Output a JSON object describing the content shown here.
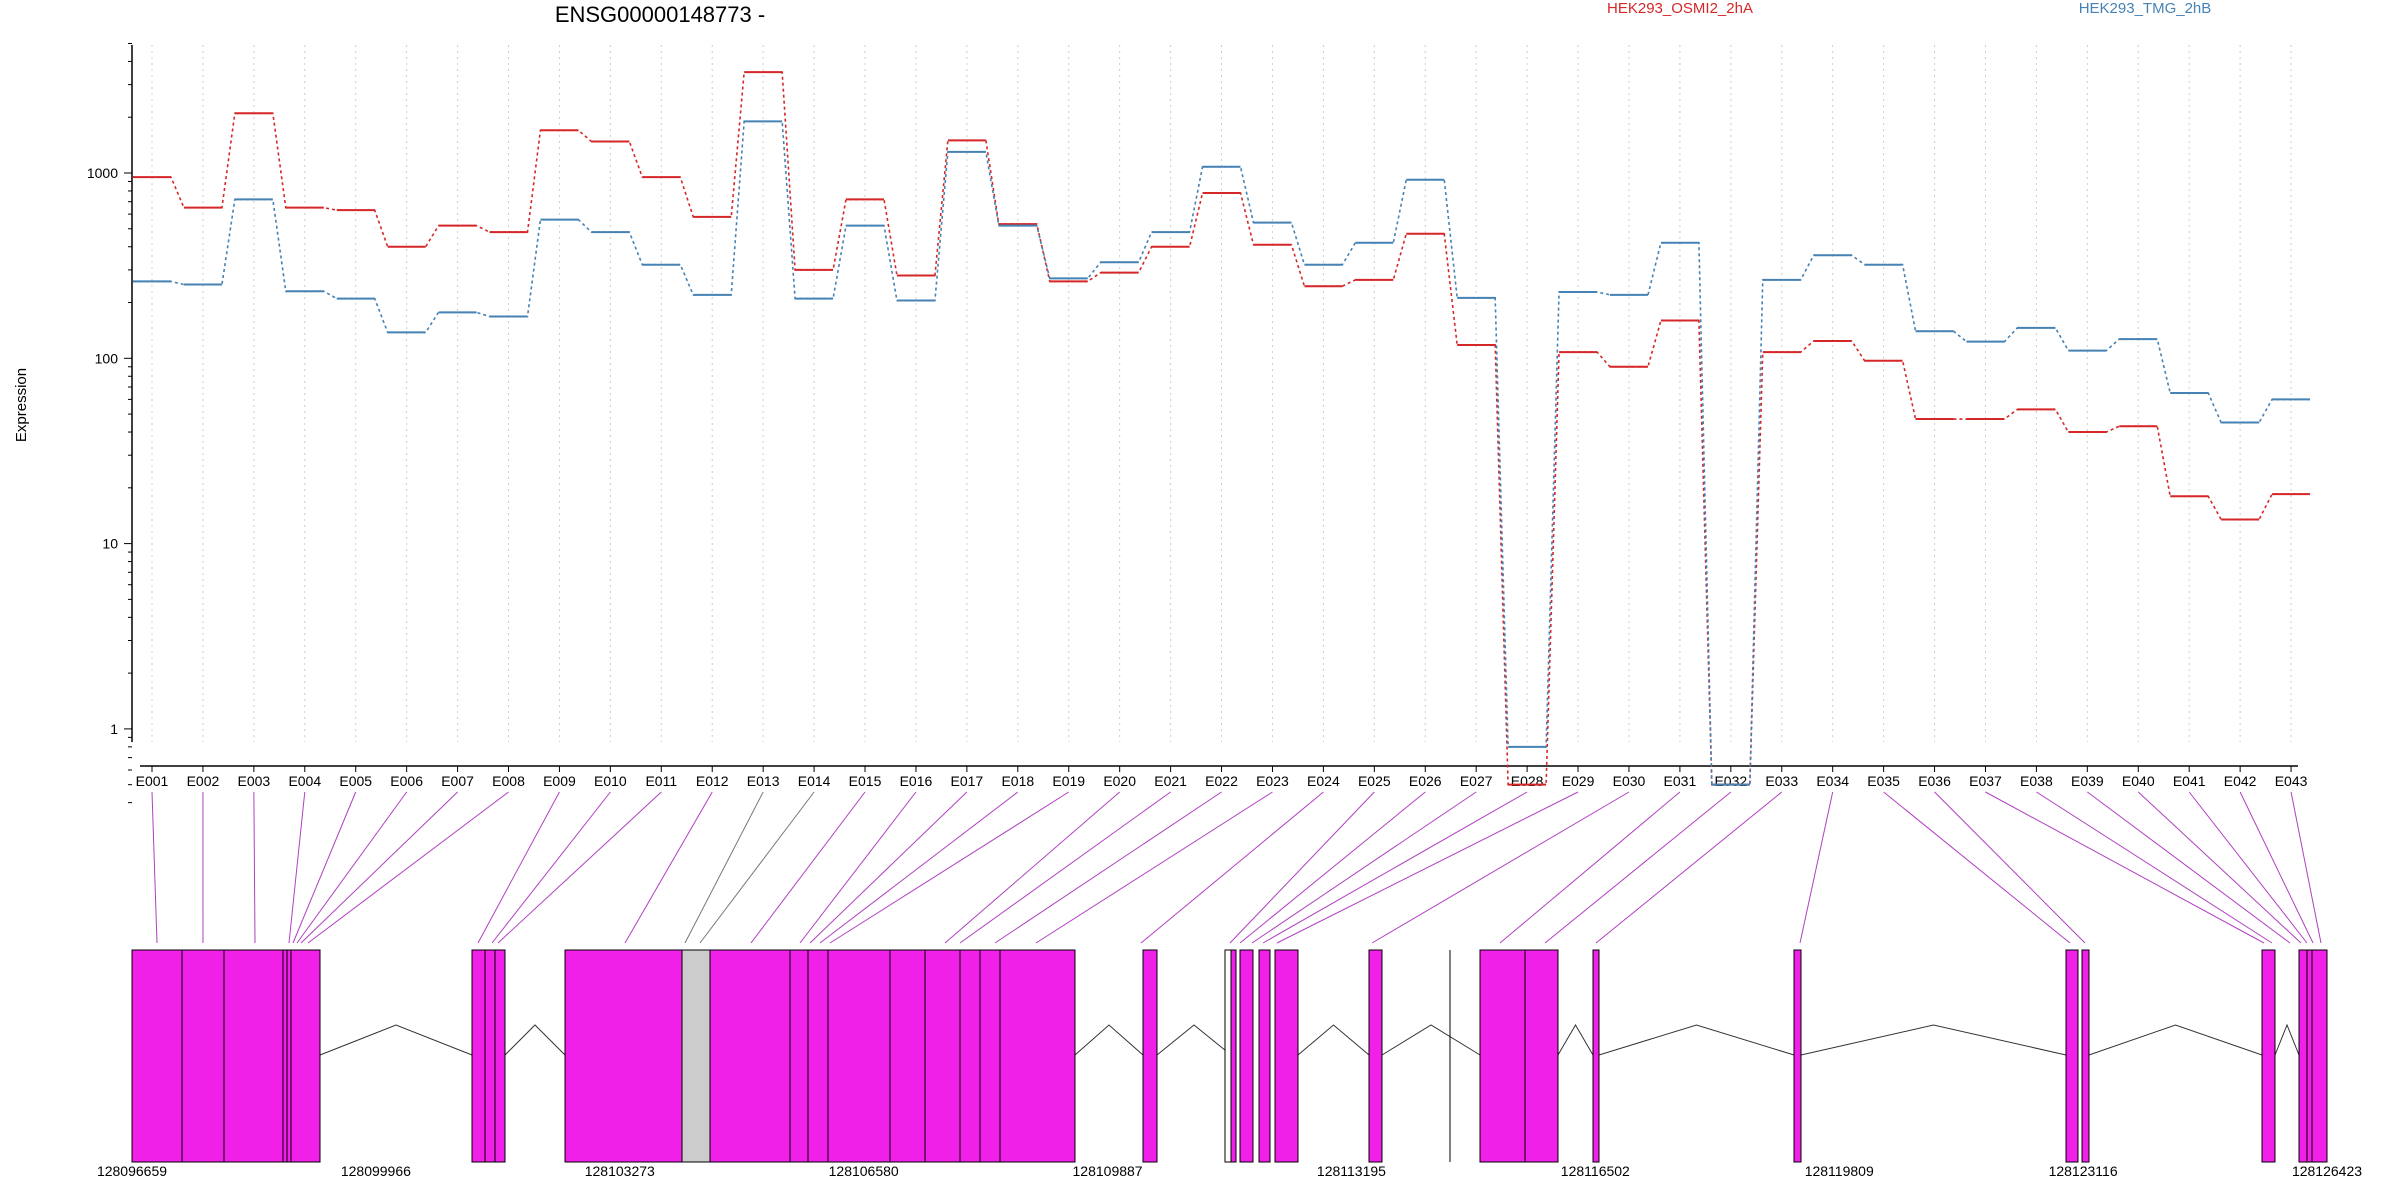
{
  "chart_data": {
    "type": "line",
    "title": "ENSG00000148773 -",
    "ylabel": "Expression",
    "y_scale": "log",
    "ylim": [
      0.4,
      5000
    ],
    "y_ticks": [
      1,
      10,
      100,
      1000
    ],
    "y_tick_labels": [
      "1",
      "10",
      "100",
      "1000"
    ],
    "grid": "vertical dotted per exon",
    "legend_position": "top",
    "categories": [
      "E001",
      "E002",
      "E003",
      "E004",
      "E005",
      "E006",
      "E007",
      "E008",
      "E009",
      "E010",
      "E011",
      "E012",
      "E013",
      "E014",
      "E015",
      "E016",
      "E017",
      "E018",
      "E019",
      "E020",
      "E021",
      "E022",
      "E023",
      "E024",
      "E025",
      "E026",
      "E027",
      "E028",
      "E029",
      "E030",
      "E031",
      "E032",
      "E033",
      "E034",
      "E035",
      "E036",
      "E037",
      "E038",
      "E039",
      "E040",
      "E041",
      "E042",
      "E043"
    ],
    "series": [
      {
        "name": "HEK293_OSMI2_2hA",
        "color": "#d62728",
        "values": [
          950,
          650,
          2100,
          650,
          630,
          400,
          520,
          480,
          1700,
          1480,
          950,
          580,
          3500,
          300,
          720,
          280,
          1500,
          530,
          260,
          290,
          400,
          780,
          410,
          245,
          265,
          470,
          118,
          0.5,
          108,
          90,
          160,
          0.5,
          108,
          124,
          97,
          47,
          47,
          53,
          40,
          43,
          18,
          13.5,
          18.5
        ]
      },
      {
        "name": "HEK293_TMG_2hB",
        "color": "#4682b4",
        "values": [
          260,
          250,
          720,
          230,
          210,
          138,
          177,
          168,
          560,
          480,
          320,
          220,
          1900,
          210,
          520,
          205,
          1300,
          520,
          270,
          330,
          480,
          1080,
          540,
          320,
          420,
          920,
          212,
          0.8,
          228,
          220,
          420,
          0.5,
          265,
          360,
          320,
          140,
          123,
          146,
          110,
          127,
          65,
          45,
          60
        ]
      }
    ],
    "exon_color": "#f020e8",
    "gene_axis_labels": [
      "128096659",
      "128099966",
      "128103273",
      "128106580",
      "128109887",
      "128113195",
      "128116502",
      "128119809",
      "128123116",
      "128126423"
    ]
  }
}
